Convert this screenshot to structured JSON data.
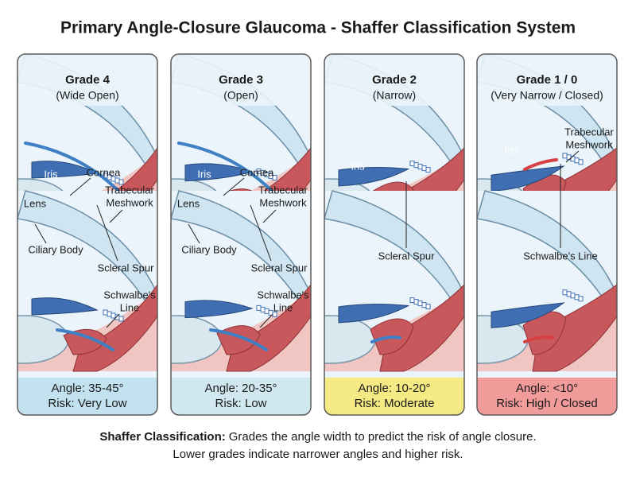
{
  "title": "Primary Angle-Closure Glaucoma - Shaffer Classification System",
  "panels": [
    {
      "grade": "Grade 4",
      "subtitle": "(Wide Open)",
      "labels": [
        [
          "Cornea"
        ],
        [
          "Trabecular",
          "Meshwork"
        ],
        [
          "Iris"
        ],
        [
          "Lens"
        ],
        [
          "Ciliary Body"
        ],
        [
          "Scleral Spur"
        ],
        [
          "Schwalbe's",
          "Line"
        ]
      ],
      "angle": "Angle: 35-45°",
      "risk": "Risk: Very Low",
      "color": "#c2e2f0"
    },
    {
      "grade": "Grade 3",
      "subtitle": "(Open)",
      "labels": [
        [
          "Cornea"
        ],
        [
          "Trabecular",
          "Meshwork"
        ],
        [
          "Iris"
        ],
        [
          "Lens"
        ],
        [
          "Ciliary Body"
        ],
        [
          "Scleral Spur"
        ],
        [
          "Schwalbe's",
          "Line"
        ]
      ],
      "angle": "Angle: 20-35°",
      "risk": "Risk: Low",
      "color": "#d2e8f1"
    },
    {
      "grade": "Grade 2",
      "subtitle": "(Narrow)",
      "labels": [
        [
          "Iris"
        ],
        [
          "Scleral Spur"
        ]
      ],
      "angle": "Angle: 10-20°",
      "risk": "Risk: Moderate",
      "color": "#f6ea84"
    },
    {
      "grade": "Grade 1 / 0",
      "subtitle": "(Very Narrow / Closed)",
      "labels": [
        [
          "Trabecular",
          "Meshwork"
        ],
        [
          "Iris"
        ],
        [
          "Schwalbe's Line"
        ]
      ],
      "angle": "Angle: <10°",
      "risk": "Risk: High / Closed",
      "color": "#f29b9b"
    }
  ],
  "caption": {
    "bold": "Shaffer Classification:",
    "text": "Grades the angle width to predict the risk of angle closure.",
    "line2": "Lower grades indicate narrower angles and higher risk."
  }
}
